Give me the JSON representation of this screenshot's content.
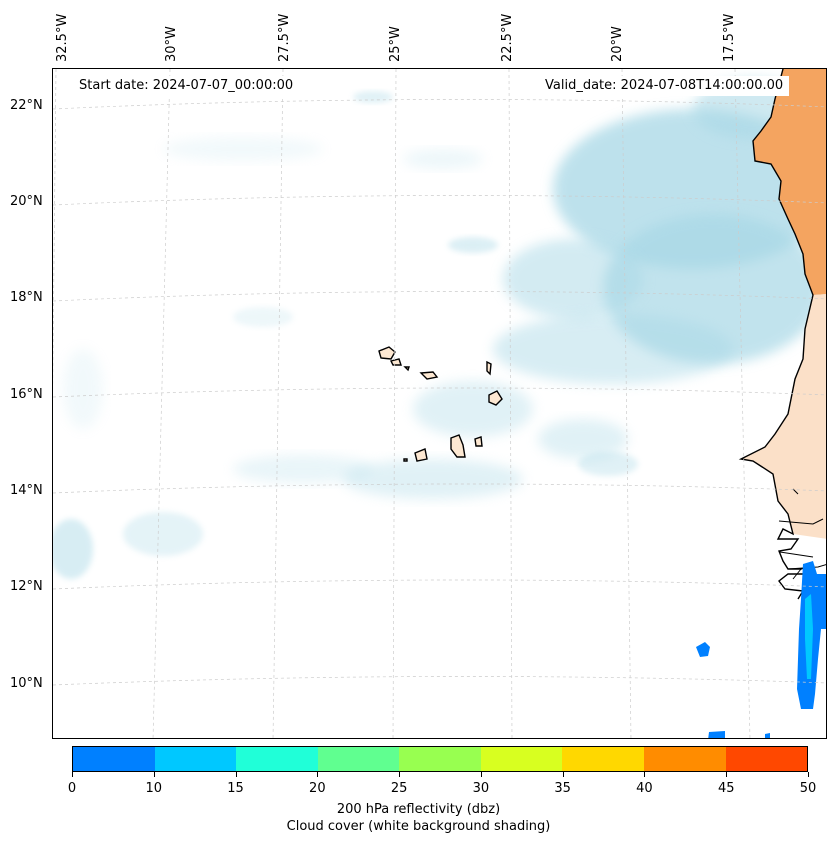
{
  "annotations": {
    "start_date": "Start date: 2024-07-07_00:00:00",
    "valid_date": "Valid_date: 2024-07-08T14:00:00.00"
  },
  "longitude_labels": [
    "32.5°W",
    "30°W",
    "27.5°W",
    "25°W",
    "22.5°W",
    "20°W",
    "17.5°W"
  ],
  "latitude_labels": [
    "22°N",
    "20°N",
    "18°N",
    "16°N",
    "14°N",
    "12°N",
    "10°N"
  ],
  "colorbar": {
    "ticks": [
      "0",
      "10",
      "15",
      "20",
      "25",
      "30",
      "35",
      "40",
      "45",
      "50"
    ],
    "colors": [
      "#0080ff",
      "#00c8ff",
      "#20ffd8",
      "#60ff90",
      "#98ff50",
      "#d8ff20",
      "#ffd800",
      "#ff8c00",
      "#ff4800"
    ],
    "label_line1": "200 hPa reflectivity (dbz)",
    "label_line2": "Cloud cover (white background shading)"
  },
  "map_colors": {
    "cloud": "#a8d8e6",
    "land_sahara": "#f4a460",
    "land_light": "#fbe0c8",
    "islands": "#fde8d2",
    "coast": "#000000",
    "grid": "#cccccc"
  }
}
